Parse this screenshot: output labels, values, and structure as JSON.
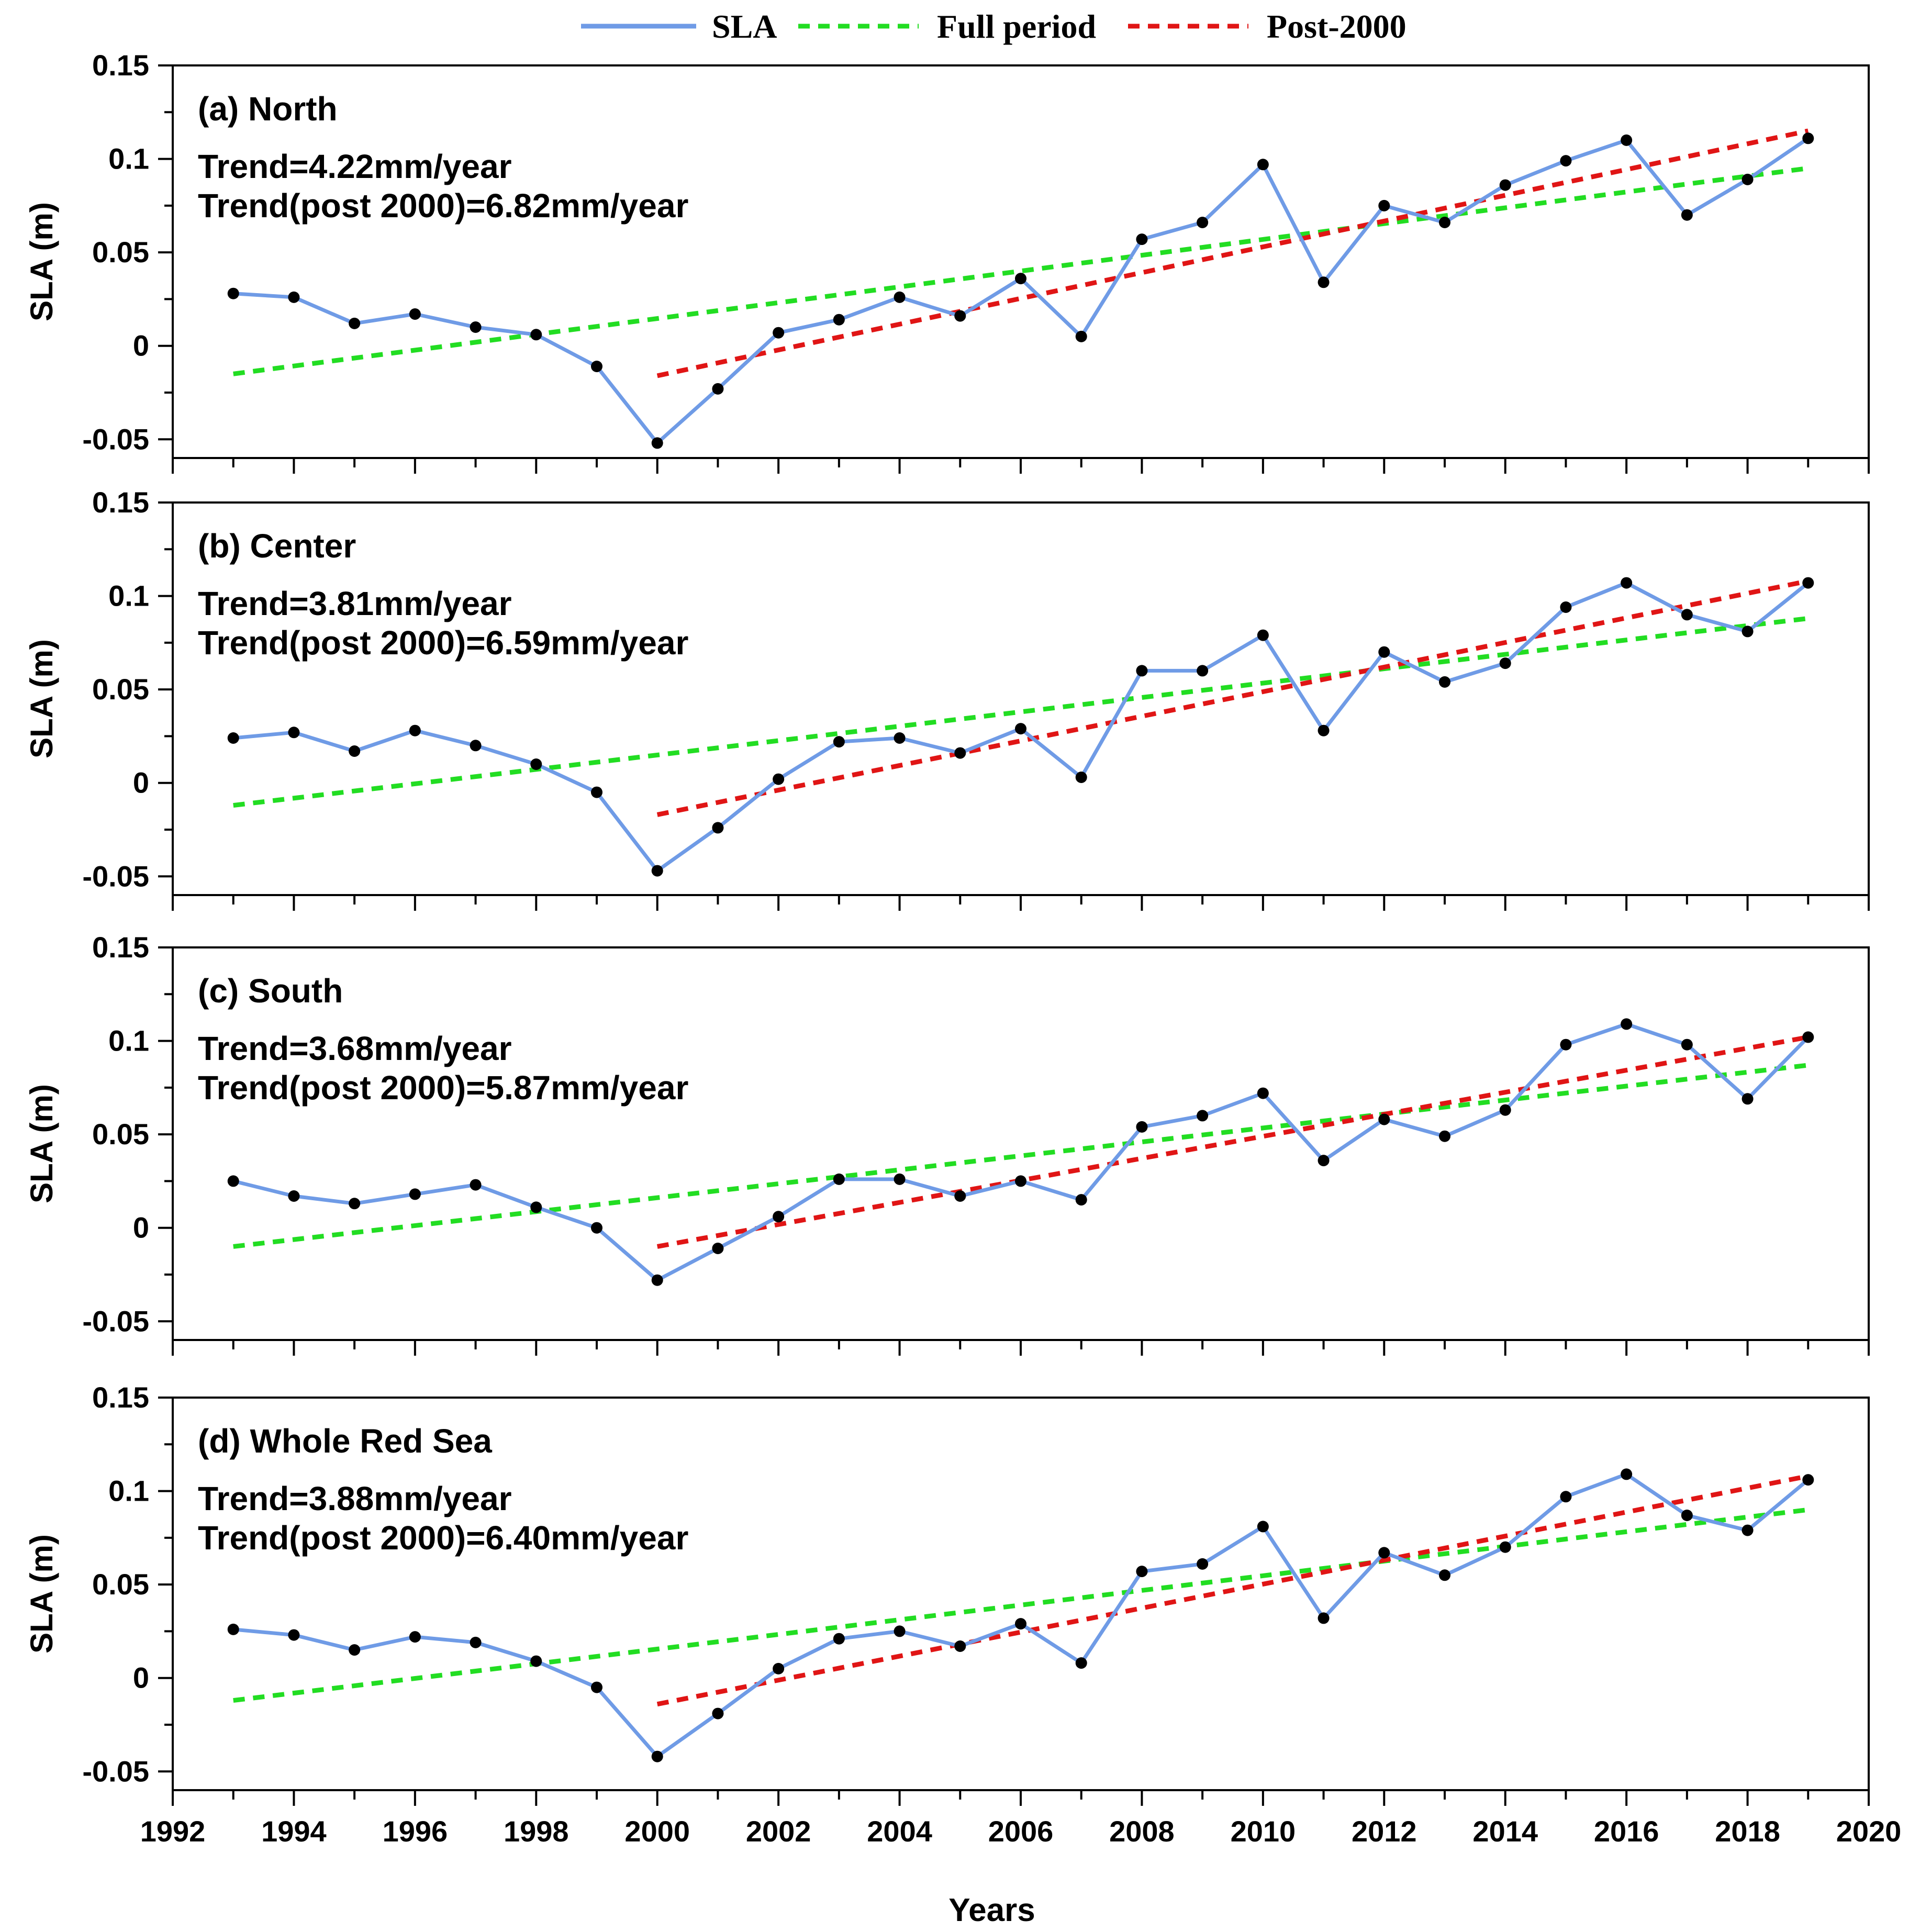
{
  "legend": {
    "sla": "SLA",
    "full": "Full period",
    "post": "Post-2000"
  },
  "colors": {
    "sla": "#6f9be6",
    "full": "#22dd22",
    "post": "#e01515",
    "marker": "#000000"
  },
  "chart_data": [
    {
      "type": "line",
      "panel_title": "(a) North",
      "trend_label": "Trend=4.22mm/year",
      "trend_post_label": "Trend(post 2000)=6.82mm/year",
      "ylabel": "SLA (m)",
      "xlabel": "",
      "x": [
        1993,
        1994,
        1995,
        1996,
        1997,
        1998,
        1999,
        2000,
        2001,
        2002,
        2003,
        2004,
        2005,
        2006,
        2007,
        2008,
        2009,
        2010,
        2011,
        2012,
        2013,
        2014,
        2015,
        2016,
        2017,
        2018,
        2019
      ],
      "series": [
        {
          "name": "SLA",
          "values": [
            0.028,
            0.026,
            0.012,
            0.017,
            0.01,
            0.006,
            -0.011,
            -0.052,
            -0.023,
            0.007,
            0.014,
            0.026,
            0.016,
            0.036,
            0.005,
            0.057,
            0.066,
            0.097,
            0.034,
            0.075,
            0.066,
            0.086,
            0.099,
            0.11,
            0.07,
            0.089,
            0.111
          ]
        },
        {
          "name": "Full period",
          "x": [
            1993,
            2019
          ],
          "values": [
            -0.015,
            0.095
          ]
        },
        {
          "name": "Post-2000",
          "x": [
            2000,
            2019
          ],
          "values": [
            -0.016,
            0.115
          ]
        }
      ],
      "xlim": [
        1992,
        2020
      ],
      "ylim": [
        -0.06,
        0.15
      ],
      "yticks": [
        -0.05,
        0,
        0.05,
        0.1,
        0.15
      ],
      "ytick_labels": [
        "-0.05",
        "0",
        "0.05",
        "0.1",
        "0.15"
      ],
      "show_xtick_labels": false
    },
    {
      "type": "line",
      "panel_title": "(b) Center",
      "trend_label": "Trend=3.81mm/year",
      "trend_post_label": "Trend(post 2000)=6.59mm/year",
      "ylabel": "SLA (m)",
      "xlabel": "",
      "x": [
        1993,
        1994,
        1995,
        1996,
        1997,
        1998,
        1999,
        2000,
        2001,
        2002,
        2003,
        2004,
        2005,
        2006,
        2007,
        2008,
        2009,
        2010,
        2011,
        2012,
        2013,
        2014,
        2015,
        2016,
        2017,
        2018,
        2019
      ],
      "series": [
        {
          "name": "SLA",
          "values": [
            0.024,
            0.027,
            0.017,
            0.028,
            0.02,
            0.01,
            -0.005,
            -0.047,
            -0.024,
            0.002,
            0.022,
            0.024,
            0.016,
            0.029,
            0.003,
            0.06,
            0.06,
            0.079,
            0.028,
            0.07,
            0.054,
            0.064,
            0.094,
            0.107,
            0.09,
            0.081,
            0.107
          ]
        },
        {
          "name": "Full period",
          "x": [
            1993,
            2019
          ],
          "values": [
            -0.012,
            0.088
          ]
        },
        {
          "name": "Post-2000",
          "x": [
            2000,
            2019
          ],
          "values": [
            -0.017,
            0.108
          ]
        }
      ],
      "xlim": [
        1992,
        2020
      ],
      "ylim": [
        -0.06,
        0.15
      ],
      "yticks": [
        -0.05,
        0,
        0.05,
        0.1,
        0.15
      ],
      "ytick_labels": [
        "-0.05",
        "0",
        "0.05",
        "0.1",
        "0.15"
      ],
      "show_xtick_labels": false
    },
    {
      "type": "line",
      "panel_title": "(c) South",
      "trend_label": "Trend=3.68mm/year",
      "trend_post_label": "Trend(post 2000)=5.87mm/year",
      "ylabel": "SLA (m)",
      "xlabel": "",
      "x": [
        1993,
        1994,
        1995,
        1996,
        1997,
        1998,
        1999,
        2000,
        2001,
        2002,
        2003,
        2004,
        2005,
        2006,
        2007,
        2008,
        2009,
        2010,
        2011,
        2012,
        2013,
        2014,
        2015,
        2016,
        2017,
        2018,
        2019
      ],
      "series": [
        {
          "name": "SLA",
          "values": [
            0.025,
            0.017,
            0.013,
            0.018,
            0.023,
            0.011,
            0.0,
            -0.028,
            -0.011,
            0.006,
            0.026,
            0.026,
            0.017,
            0.025,
            0.015,
            0.054,
            0.06,
            0.072,
            0.036,
            0.058,
            0.049,
            0.063,
            0.098,
            0.109,
            0.098,
            0.069,
            0.102
          ]
        },
        {
          "name": "Full period",
          "x": [
            1993,
            2019
          ],
          "values": [
            -0.01,
            0.087
          ]
        },
        {
          "name": "Post-2000",
          "x": [
            2000,
            2019
          ],
          "values": [
            -0.01,
            0.102
          ]
        }
      ],
      "xlim": [
        1992,
        2020
      ],
      "ylim": [
        -0.06,
        0.15
      ],
      "yticks": [
        -0.05,
        0,
        0.05,
        0.1,
        0.15
      ],
      "ytick_labels": [
        "-0.05",
        "0",
        "0.05",
        "0.1",
        "0.15"
      ],
      "show_xtick_labels": false
    },
    {
      "type": "line",
      "panel_title": "(d) Whole Red Sea",
      "trend_label": "Trend=3.88mm/year",
      "trend_post_label": "Trend(post 2000)=6.40mm/year",
      "ylabel": "SLA (m)",
      "xlabel": "Years",
      "x": [
        1993,
        1994,
        1995,
        1996,
        1997,
        1998,
        1999,
        2000,
        2001,
        2002,
        2003,
        2004,
        2005,
        2006,
        2007,
        2008,
        2009,
        2010,
        2011,
        2012,
        2013,
        2014,
        2015,
        2016,
        2017,
        2018,
        2019
      ],
      "series": [
        {
          "name": "SLA",
          "values": [
            0.026,
            0.023,
            0.015,
            0.022,
            0.019,
            0.009,
            -0.005,
            -0.042,
            -0.019,
            0.005,
            0.021,
            0.025,
            0.017,
            0.029,
            0.008,
            0.057,
            0.061,
            0.081,
            0.032,
            0.067,
            0.055,
            0.07,
            0.097,
            0.109,
            0.087,
            0.079,
            0.106
          ]
        },
        {
          "name": "Full period",
          "x": [
            1993,
            2019
          ],
          "values": [
            -0.012,
            0.09
          ]
        },
        {
          "name": "Post-2000",
          "x": [
            2000,
            2019
          ],
          "values": [
            -0.014,
            0.108
          ]
        }
      ],
      "xlim": [
        1992,
        2020
      ],
      "ylim": [
        -0.06,
        0.15
      ],
      "yticks": [
        -0.05,
        0,
        0.05,
        0.1,
        0.15
      ],
      "ytick_labels": [
        "-0.05",
        "0",
        "0.05",
        "0.1",
        "0.15"
      ],
      "xticks": [
        1992,
        1994,
        1996,
        1998,
        2000,
        2002,
        2004,
        2006,
        2008,
        2010,
        2012,
        2014,
        2016,
        2018,
        2020
      ],
      "xtick_labels": [
        "1992",
        "1994",
        "1996",
        "1998",
        "2000",
        "2002",
        "2004",
        "2006",
        "2008",
        "2010",
        "2012",
        "2014",
        "2016",
        "2018",
        "2020"
      ],
      "show_xtick_labels": true
    }
  ]
}
